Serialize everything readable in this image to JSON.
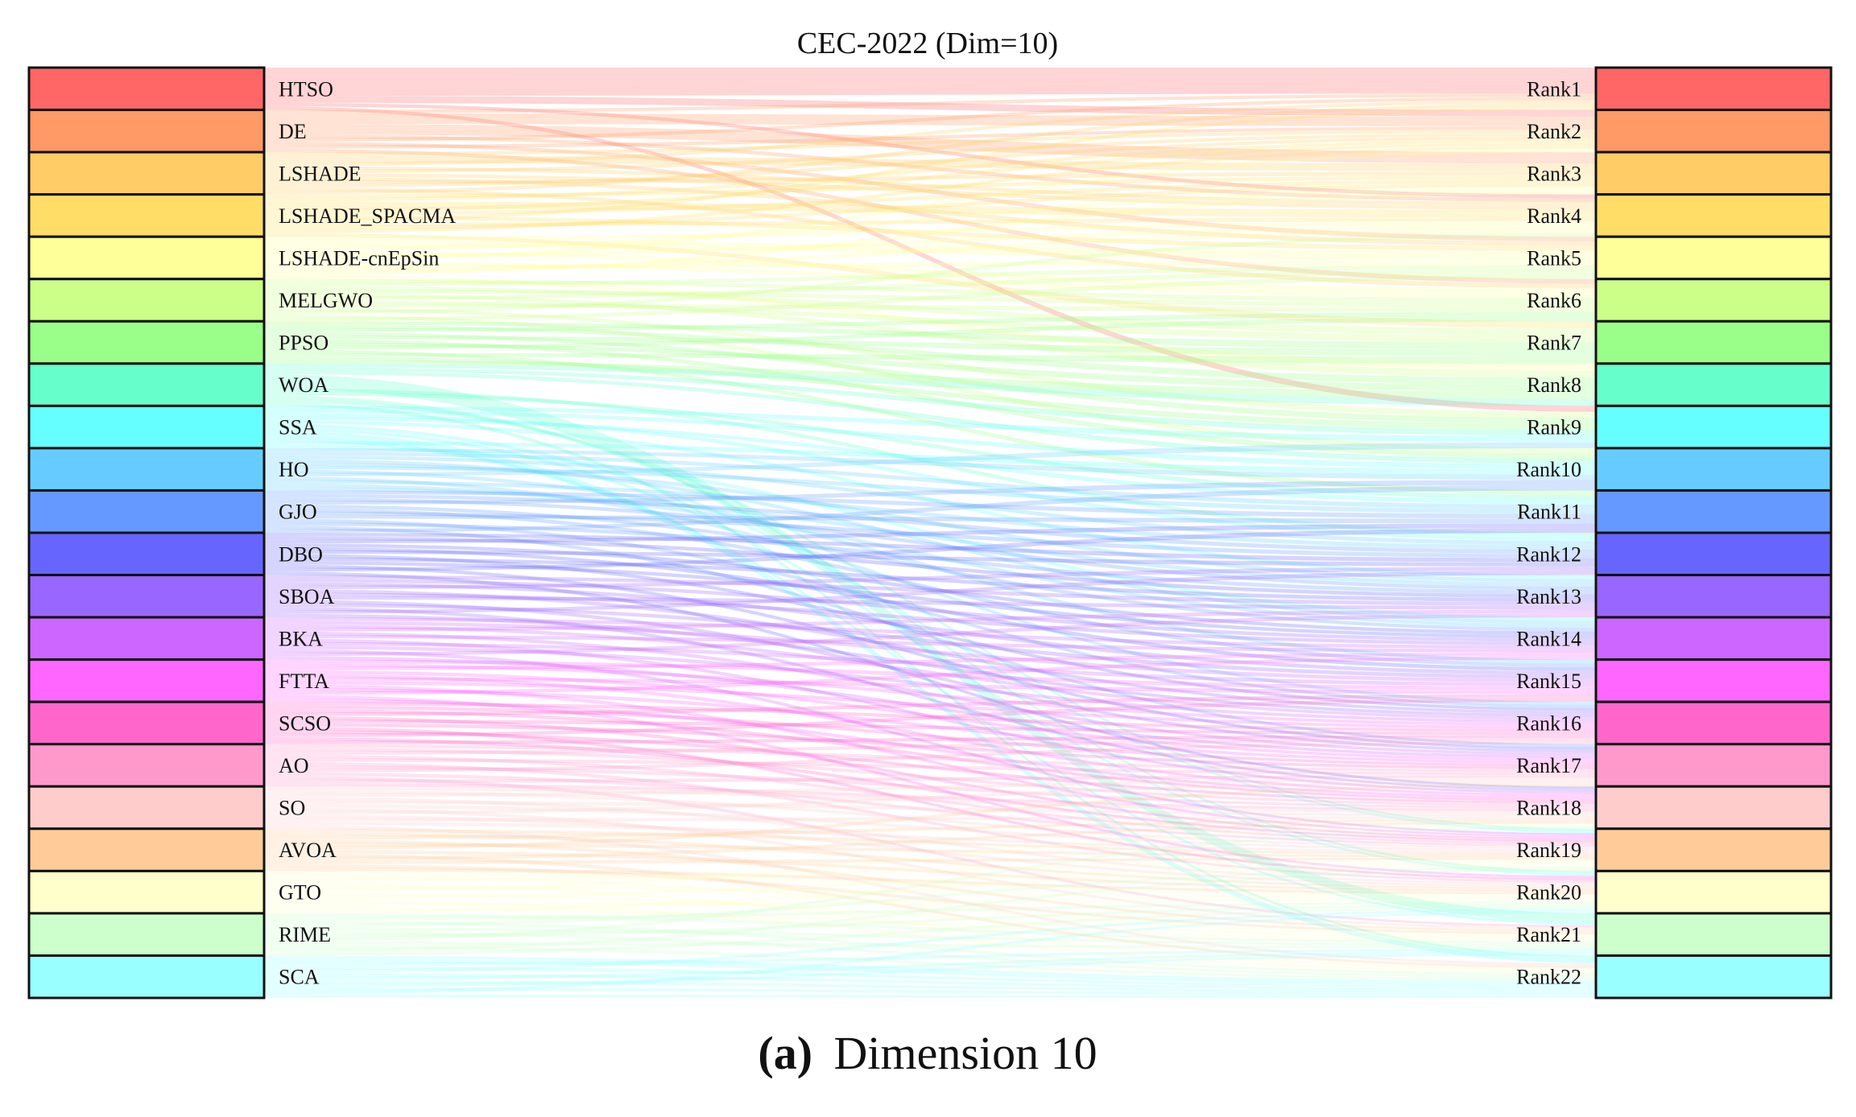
{
  "chart_data": {
    "type": "sankey",
    "title": "CEC-2022 (Dim=10)",
    "caption_letter": "(a)",
    "caption_text": "Dimension 10",
    "left_nodes": [
      {
        "label": "HTSO",
        "color": "#FF6666"
      },
      {
        "label": "DE",
        "color": "#FF9966"
      },
      {
        "label": "LSHADE",
        "color": "#FFCC66"
      },
      {
        "label": "LSHADE_SPACMA",
        "color": "#FFDD66"
      },
      {
        "label": "LSHADE-cnEpSin",
        "color": "#FFFF99"
      },
      {
        "label": "MELGWO",
        "color": "#CCFF88"
      },
      {
        "label": "PPSO",
        "color": "#99FF88"
      },
      {
        "label": "WOA",
        "color": "#66FFCC"
      },
      {
        "label": "SSA",
        "color": "#66FFFF"
      },
      {
        "label": "HO",
        "color": "#66CCFF"
      },
      {
        "label": "GJO",
        "color": "#6699FF"
      },
      {
        "label": "DBO",
        "color": "#6666FF"
      },
      {
        "label": "SBOA",
        "color": "#9966FF"
      },
      {
        "label": "BKA",
        "color": "#CC66FF"
      },
      {
        "label": "FTTA",
        "color": "#FF66FF"
      },
      {
        "label": "SCSO",
        "color": "#FF66CC"
      },
      {
        "label": "AO",
        "color": "#FF99CC"
      },
      {
        "label": "SO",
        "color": "#FFCCCC"
      },
      {
        "label": "AVOA",
        "color": "#FFCC99"
      },
      {
        "label": "GTO",
        "color": "#FFFFCC"
      },
      {
        "label": "RIME",
        "color": "#CCFFCC"
      },
      {
        "label": "SCA",
        "color": "#99FFFF"
      }
    ],
    "right_nodes": [
      {
        "label": "Rank1",
        "color": "#FF6666"
      },
      {
        "label": "Rank2",
        "color": "#FF9966"
      },
      {
        "label": "Rank3",
        "color": "#FFCC66"
      },
      {
        "label": "Rank4",
        "color": "#FFDD66"
      },
      {
        "label": "Rank5",
        "color": "#FFFF99"
      },
      {
        "label": "Rank6",
        "color": "#CCFF88"
      },
      {
        "label": "Rank7",
        "color": "#99FF88"
      },
      {
        "label": "Rank8",
        "color": "#66FFCC"
      },
      {
        "label": "Rank9",
        "color": "#66FFFF"
      },
      {
        "label": "Rank10",
        "color": "#66CCFF"
      },
      {
        "label": "Rank11",
        "color": "#6699FF"
      },
      {
        "label": "Rank12",
        "color": "#6666FF"
      },
      {
        "label": "Rank13",
        "color": "#9966FF"
      },
      {
        "label": "Rank14",
        "color": "#CC66FF"
      },
      {
        "label": "Rank15",
        "color": "#FF66FF"
      },
      {
        "label": "Rank16",
        "color": "#FF66CC"
      },
      {
        "label": "Rank17",
        "color": "#FF99CC"
      },
      {
        "label": "Rank18",
        "color": "#FFCCCC"
      },
      {
        "label": "Rank19",
        "color": "#FFCC99"
      },
      {
        "label": "Rank20",
        "color": "#FFFFCC"
      },
      {
        "label": "Rank21",
        "color": "#CCFFCC"
      },
      {
        "label": "Rank22",
        "color": "#99FFFF"
      }
    ],
    "flows": [
      {
        "from": 0,
        "to": [
          1,
          1,
          1,
          1,
          1,
          1,
          1,
          1,
          2,
          2,
          4,
          9
        ]
      },
      {
        "from": 1,
        "to": [
          1,
          2,
          2,
          2,
          3,
          3,
          3,
          4,
          1,
          5,
          2,
          6
        ]
      },
      {
        "from": 2,
        "to": [
          2,
          3,
          3,
          1,
          4,
          2,
          4,
          5,
          3,
          2,
          6,
          1
        ]
      },
      {
        "from": 3,
        "to": [
          3,
          2,
          4,
          4,
          2,
          3,
          5,
          1,
          4,
          3,
          2,
          7
        ]
      },
      {
        "from": 4,
        "to": [
          4,
          5,
          5,
          3,
          6,
          4,
          2,
          6,
          5,
          4,
          3,
          8
        ]
      },
      {
        "from": 5,
        "to": [
          6,
          5,
          7,
          6,
          8,
          5,
          7,
          6,
          9,
          4,
          10,
          5
        ]
      },
      {
        "from": 6,
        "to": [
          7,
          8,
          6,
          9,
          7,
          10,
          8,
          6,
          11,
          7,
          9,
          8
        ]
      },
      {
        "from": 7,
        "to": [
          8,
          9,
          10,
          21,
          21,
          21,
          21,
          12,
          11,
          20,
          19,
          22
        ]
      },
      {
        "from": 8,
        "to": [
          9,
          10,
          12,
          11,
          13,
          19,
          20,
          22,
          22,
          21,
          10,
          14
        ]
      },
      {
        "from": 9,
        "to": [
          10,
          11,
          12,
          14,
          13,
          11,
          15,
          9,
          16,
          12,
          14,
          13
        ]
      },
      {
        "from": 10,
        "to": [
          11,
          12,
          13,
          10,
          14,
          15,
          12,
          11,
          16,
          13,
          17,
          10
        ]
      },
      {
        "from": 11,
        "to": [
          12,
          13,
          11,
          14,
          15,
          12,
          16,
          13,
          14,
          17,
          11,
          18
        ]
      },
      {
        "from": 12,
        "to": [
          13,
          14,
          15,
          12,
          16,
          14,
          13,
          17,
          15,
          18,
          12,
          16
        ]
      },
      {
        "from": 13,
        "to": [
          14,
          15,
          16,
          13,
          17,
          14,
          18,
          15,
          16,
          19,
          13,
          17
        ]
      },
      {
        "from": 14,
        "to": [
          15,
          16,
          14,
          17,
          18,
          15,
          16,
          19,
          17,
          14,
          20,
          18
        ]
      },
      {
        "from": 15,
        "to": [
          16,
          17,
          18,
          15,
          19,
          16,
          17,
          20,
          18,
          15,
          19,
          16
        ]
      },
      {
        "from": 16,
        "to": [
          17,
          18,
          16,
          19,
          17,
          20,
          18,
          16,
          19,
          21,
          17,
          18
        ]
      },
      {
        "from": 17,
        "to": [
          18,
          19,
          17,
          20,
          18,
          19,
          21,
          17,
          20,
          18,
          19,
          22
        ]
      },
      {
        "from": 18,
        "to": [
          19,
          20,
          18,
          21,
          19,
          17,
          20,
          22,
          18,
          19,
          21,
          20
        ]
      },
      {
        "from": 19,
        "to": [
          20,
          21,
          19,
          22,
          20,
          18,
          21,
          19,
          22,
          20,
          21,
          19
        ]
      },
      {
        "from": 20,
        "to": [
          21,
          20,
          22,
          19,
          21,
          22,
          20,
          18,
          21,
          22,
          19,
          20
        ]
      },
      {
        "from": 21,
        "to": [
          22,
          22,
          21,
          22,
          20,
          22,
          21,
          22,
          21,
          22,
          20,
          22
        ]
      }
    ]
  }
}
